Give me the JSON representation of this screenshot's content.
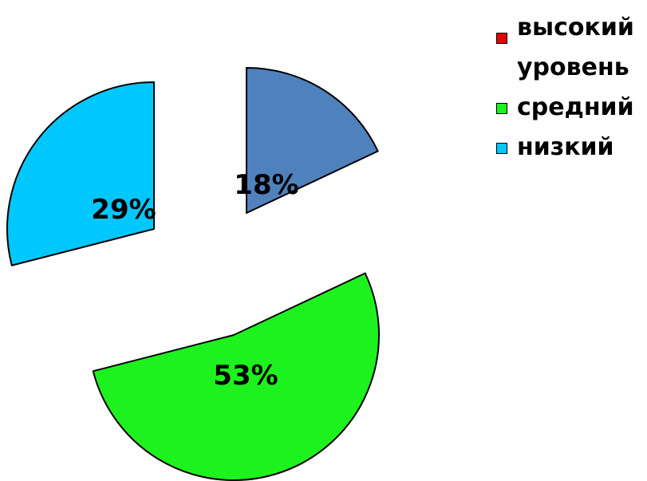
{
  "chart_data": {
    "type": "pie",
    "exploded": true,
    "slices": [
      {
        "name": "высокий уровень",
        "value": 18,
        "label": "18%",
        "color": "#4F81BD"
      },
      {
        "name": "средний",
        "value": 53,
        "label": "53%",
        "color": "#1EF21E"
      },
      {
        "name": "низкий",
        "value": 29,
        "label": "29%",
        "color": "#00C8FF"
      }
    ],
    "legend": {
      "placement": "top-right",
      "entries": [
        {
          "lines": [
            "высокий",
            "уровень"
          ],
          "color": "#E60000"
        },
        {
          "lines": [
            "средний"
          ],
          "color": "#1EF21E"
        },
        {
          "lines": [
            "низкий"
          ],
          "color": "#00C8FF"
        }
      ]
    }
  }
}
